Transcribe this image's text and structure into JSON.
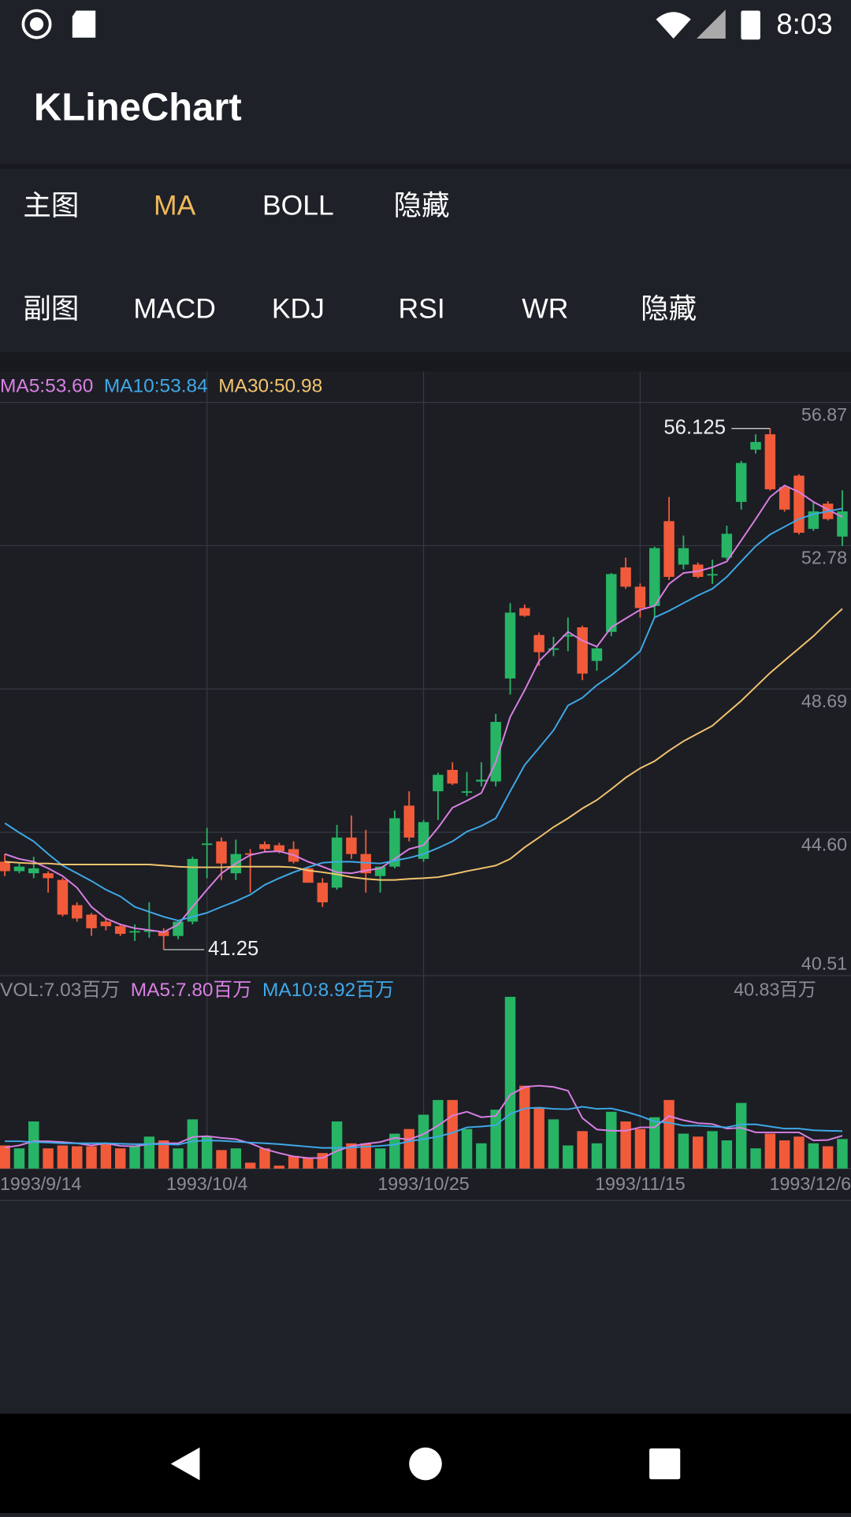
{
  "status_bar": {
    "time": "8:03"
  },
  "app_bar": {
    "title": "KLineChart"
  },
  "main_tabs": {
    "label": "主图",
    "items": [
      "MA",
      "BOLL",
      "隐藏"
    ],
    "selected": 0
  },
  "sub_tabs": {
    "label": "副图",
    "items": [
      "MACD",
      "KDJ",
      "RSI",
      "WR",
      "隐藏"
    ]
  },
  "chart_data": {
    "type": "candlestick",
    "categories": [
      "1993/9/14",
      null,
      null,
      null,
      null,
      null,
      null,
      null,
      null,
      null,
      null,
      null,
      null,
      null,
      "1993/10/4",
      null,
      null,
      null,
      null,
      null,
      null,
      null,
      null,
      null,
      null,
      null,
      null,
      null,
      null,
      "1993/10/25",
      null,
      null,
      null,
      null,
      null,
      null,
      null,
      null,
      null,
      null,
      null,
      null,
      null,
      null,
      "1993/11/15",
      null,
      null,
      null,
      null,
      null,
      null,
      null,
      null,
      null,
      null,
      null,
      null,
      null,
      "1993/12/6"
    ],
    "open": [
      43.76,
      43.49,
      43.43,
      43.43,
      43.24,
      42.52,
      42.25,
      42.05,
      41.92,
      41.75,
      41.76,
      41.78,
      41.64,
      42.05,
      44.24,
      44.34,
      43.43,
      44.0,
      44.26,
      44.23,
      44.12,
      43.57,
      43.16,
      43.02,
      44.45,
      43.98,
      43.35,
      43.62,
      45.36,
      43.84,
      45.77,
      46.38,
      45.74,
      46.05,
      46.05,
      48.99,
      51.0,
      50.23,
      49.82,
      50.2,
      50.45,
      49.49,
      50.32,
      52.16,
      51.61,
      51.06,
      53.48,
      52.24,
      52.24,
      51.95,
      52.44,
      54.03,
      55.52,
      55.96,
      54.45,
      54.78,
      53.26,
      53.98,
      53.04
    ],
    "high": [
      43.98,
      43.71,
      43.9,
      43.49,
      43.29,
      42.6,
      42.3,
      42.14,
      41.97,
      41.97,
      42.6,
      41.86,
      42.1,
      43.9,
      44.73,
      44.45,
      44.39,
      44.12,
      44.34,
      44.3,
      44.34,
      43.62,
      43.29,
      44.81,
      45.08,
      44.67,
      43.62,
      45.22,
      45.77,
      44.95,
      46.3,
      46.6,
      46.32,
      46.6,
      47.98,
      51.14,
      51.1,
      50.3,
      50.18,
      50.73,
      50.5,
      49.9,
      52.0,
      52.44,
      51.7,
      52.75,
      54.17,
      53.07,
      52.3,
      52.38,
      53.35,
      55.2,
      55.96,
      56.125,
      54.5,
      54.82,
      54.03,
      54.05,
      54.36
    ],
    "low": [
      43.35,
      43.43,
      43.29,
      42.88,
      42.2,
      42.05,
      41.64,
      41.8,
      41.64,
      41.5,
      41.59,
      41.25,
      41.55,
      41.97,
      43.29,
      43.24,
      43.24,
      42.88,
      44.06,
      44.0,
      43.71,
      43.16,
      42.47,
      42.96,
      43.84,
      42.88,
      42.88,
      43.57,
      44.34,
      43.76,
      44.95,
      45.95,
      45.63,
      45.91,
      45.91,
      48.53,
      50.75,
      49.35,
      49.63,
      49.77,
      48.94,
      49.21,
      50.2,
      51.55,
      50.73,
      50.73,
      51.8,
      52.1,
      51.85,
      51.69,
      52.38,
      53.81,
      55.41,
      54.35,
      53.75,
      53.1,
      53.2,
      53.5,
      52.77
    ],
    "close": [
      43.49,
      43.62,
      43.57,
      43.29,
      42.25,
      42.14,
      41.86,
      41.92,
      41.7,
      41.78,
      41.8,
      41.64,
      42.05,
      43.84,
      44.28,
      43.71,
      43.98,
      43.96,
      44.12,
      44.06,
      43.76,
      43.16,
      42.6,
      44.45,
      43.98,
      43.43,
      43.62,
      45.0,
      44.45,
      44.89,
      46.24,
      45.99,
      45.77,
      46.1,
      47.75,
      50.87,
      50.78,
      49.74,
      49.85,
      50.23,
      49.13,
      49.85,
      51.97,
      51.61,
      51.0,
      52.71,
      51.89,
      52.71,
      51.89,
      51.97,
      53.12,
      55.14,
      55.74,
      54.39,
      53.81,
      53.15,
      53.76,
      53.54,
      53.76
    ],
    "up_color": "#27b565",
    "down_color": "#f15b3a",
    "ylim": [
      40.51,
      56.87
    ],
    "yticks": [
      56.87,
      52.78,
      48.69,
      {
        "value": 44.6,
        "label": "44.60"
      },
      40.51
    ],
    "grid": true,
    "ma_series": [
      {
        "label": "MA5:53.60",
        "color": "#d97fe3",
        "values": [
          43.98,
          43.84,
          43.76,
          43.57,
          43.35,
          43.02,
          42.47,
          42.14,
          41.97,
          41.86,
          41.81,
          41.75,
          41.97,
          42.47,
          42.96,
          43.43,
          43.71,
          43.95,
          44.04,
          44.06,
          43.95,
          43.76,
          43.62,
          43.46,
          43.43,
          43.51,
          43.57,
          43.84,
          44.12,
          44.23,
          44.73,
          45.3,
          45.5,
          45.72,
          46.6,
          47.89,
          48.66,
          49.49,
          49.9,
          50.32,
          50.07,
          49.9,
          50.45,
          50.7,
          50.95,
          51.06,
          51.69,
          52.0,
          52.05,
          52.16,
          52.33,
          52.93,
          53.54,
          54.17,
          54.5,
          54.31,
          54.03,
          53.81,
          53.6
        ]
      },
      {
        "label": "MA10:53.84",
        "color": "#3fa9e8",
        "values": [
          44.86,
          44.59,
          44.34,
          43.98,
          43.65,
          43.43,
          43.21,
          42.96,
          42.77,
          42.47,
          42.33,
          42.19,
          42.08,
          42.19,
          42.3,
          42.47,
          42.63,
          42.82,
          43.1,
          43.29,
          43.46,
          43.6,
          43.73,
          43.76,
          43.76,
          43.73,
          43.71,
          43.79,
          43.87,
          43.98,
          44.15,
          44.34,
          44.62,
          44.78,
          45.0,
          45.77,
          46.52,
          47.01,
          47.51,
          48.22,
          48.44,
          48.8,
          49.08,
          49.41,
          49.77,
          50.73,
          50.92,
          51.14,
          51.36,
          51.55,
          51.89,
          52.33,
          52.77,
          53.1,
          53.32,
          53.54,
          53.68,
          53.76,
          53.84
        ]
      },
      {
        "label": "MA30:50.98",
        "color": "#f3c46e",
        "values": [
          43.76,
          43.73,
          43.71,
          43.71,
          43.68,
          43.68,
          43.68,
          43.68,
          43.68,
          43.68,
          43.68,
          43.65,
          43.62,
          43.6,
          43.6,
          43.6,
          43.62,
          43.62,
          43.62,
          43.62,
          43.6,
          43.51,
          43.46,
          43.4,
          43.32,
          43.27,
          43.24,
          43.24,
          43.27,
          43.29,
          43.32,
          43.4,
          43.49,
          43.57,
          43.65,
          43.84,
          44.17,
          44.45,
          44.75,
          45.0,
          45.28,
          45.52,
          45.83,
          46.16,
          46.43,
          46.63,
          46.93,
          47.2,
          47.42,
          47.64,
          48.0,
          48.35,
          48.75,
          49.15,
          49.5,
          49.85,
          50.2,
          50.6,
          50.98
        ]
      }
    ],
    "volume": [
      5.5,
      4.8,
      11.2,
      4.8,
      5.5,
      5.3,
      5.3,
      6.0,
      4.8,
      5.3,
      7.6,
      6.7,
      4.8,
      11.7,
      7.6,
      4.4,
      4.8,
      1.4,
      4.8,
      0.7,
      3.0,
      2.5,
      3.7,
      11.2,
      6.0,
      6.0,
      4.8,
      8.3,
      9.4,
      12.8,
      16.3,
      16.3,
      9.4,
      6.0,
      14.0,
      40.83,
      19.7,
      14.5,
      11.7,
      5.5,
      8.9,
      6.0,
      13.5,
      11.2,
      9.4,
      12.2,
      16.3,
      8.3,
      7.6,
      8.9,
      6.7,
      15.6,
      4.8,
      8.3,
      6.7,
      7.6,
      6.0,
      5.3,
      7.03
    ],
    "volume_label": "VOL:7.03百万",
    "vol_ylim": [
      0,
      40.83
    ],
    "vol_yticks": [
      {
        "value": 40.83,
        "label": "40.83百万"
      }
    ],
    "vol_ma_series": [
      {
        "label": "MA5:7.80百万",
        "color": "#d97fe3",
        "values": [
          5,
          5.5,
          6.5,
          6.5,
          6.3,
          6,
          5.5,
          6,
          5.4,
          5.3,
          5.8,
          6,
          6,
          7.5,
          7.7,
          7.3,
          7,
          6,
          4.6,
          3.7,
          2.9,
          2.5,
          2.5,
          4.2,
          5.3,
          5.9,
          6.3,
          7.3,
          6.9,
          8.2,
          10.2,
          12.6,
          13.5,
          12.2,
          12.5,
          17.5,
          19.4,
          19.7,
          19.4,
          18.5,
          12,
          9.3,
          9,
          9,
          9.8,
          9.8,
          12.5,
          11.5,
          10.8,
          10.6,
          9.5,
          9.7,
          8.6,
          8.6,
          8.6,
          8.6,
          6.7,
          6.8,
          7.8
        ]
      },
      {
        "label": "MA10:8.92百万",
        "color": "#3fa9e8",
        "values": [
          6.5,
          6.5,
          6.3,
          6.2,
          6,
          6,
          6,
          6,
          5.9,
          5.8,
          5.8,
          5.8,
          5.7,
          6.5,
          6.7,
          6.6,
          6.4,
          6.2,
          6,
          5.8,
          5.5,
          5.2,
          4.9,
          4.9,
          5,
          5.2,
          5.4,
          5.7,
          6.5,
          7,
          7.6,
          8.5,
          9.8,
          10,
          10.3,
          13,
          14.3,
          14.5,
          14.2,
          14.1,
          14.7,
          14.2,
          14.3,
          13.5,
          12.5,
          11.2,
          10.9,
          10.2,
          10.2,
          10,
          9.8,
          10.5,
          10.5,
          10,
          9.5,
          9.5,
          9.1,
          9,
          8.92
        ]
      }
    ]
  }
}
